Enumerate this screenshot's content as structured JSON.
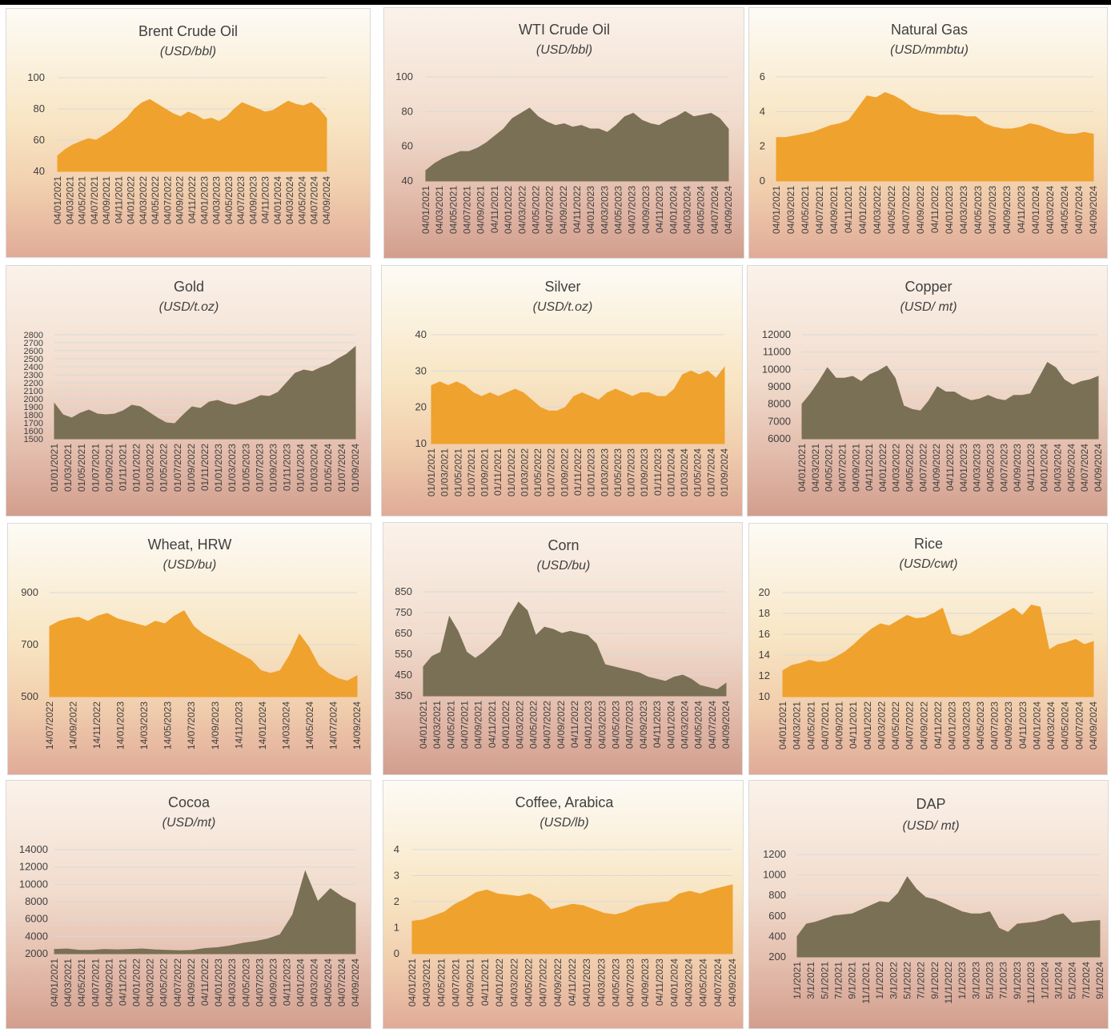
{
  "colors": {
    "orange": "#f0a22e",
    "olive": "#7a7055",
    "text": "#404040",
    "grid": "#d9d9d9"
  },
  "chart_data": [
    {
      "id": "brent",
      "type": "area",
      "title": "Brent Crude Oil",
      "unit": "(USD/bbl)",
      "color": "#f0a22e",
      "ylim": [
        40,
        100
      ],
      "yticks": [
        40,
        60,
        80,
        100
      ],
      "xticks": [
        "04/01/2021",
        "04/03/2021",
        "04/05/2021",
        "04/07/2021",
        "04/09/2021",
        "04/11/2021",
        "04/01/2022",
        "04/03/2022",
        "04/05/2022",
        "04/07/2022",
        "04/09/2022",
        "04/11/2022",
        "04/01/2023",
        "04/03/2023",
        "04/05/2023",
        "04/07/2023",
        "04/09/2023",
        "04/11/2023",
        "04/01/2024",
        "04/03/2024",
        "04/05/2024",
        "04/07/2024",
        "04/09/2024"
      ],
      "values": [
        50,
        54,
        57,
        59,
        61,
        60,
        63,
        66,
        70,
        74,
        80,
        84,
        86,
        83,
        80,
        77,
        75,
        78,
        76,
        73,
        74,
        72,
        75,
        80,
        84,
        82,
        80,
        78,
        79,
        82,
        85,
        83,
        82,
        84,
        80,
        74
      ]
    },
    {
      "id": "wti",
      "type": "area",
      "title": "WTI Crude Oil",
      "unit": "(USD/bbl)",
      "color": "#7a7055",
      "ylim": [
        40,
        100
      ],
      "yticks": [
        40,
        60,
        80,
        100
      ],
      "xticks": [
        "04/01/2021",
        "04/03/2021",
        "04/05/2021",
        "04/07/2021",
        "04/09/2021",
        "04/11/2021",
        "04/01/2022",
        "04/03/2022",
        "04/05/2022",
        "04/07/2022",
        "04/09/2022",
        "04/11/2022",
        "04/01/2023",
        "04/03/2023",
        "04/05/2023",
        "04/07/2023",
        "04/09/2023",
        "04/11/2023",
        "04/01/2024",
        "04/03/2024",
        "04/05/2024",
        "04/07/2024",
        "04/09/2024"
      ],
      "values": [
        46,
        50,
        53,
        55,
        57,
        57,
        59,
        62,
        66,
        70,
        76,
        79,
        82,
        77,
        74,
        72,
        73,
        71,
        72,
        70,
        70,
        68,
        72,
        77,
        79,
        75,
        73,
        72,
        75,
        77,
        80,
        77,
        78,
        79,
        76,
        70
      ]
    },
    {
      "id": "natgas",
      "type": "area",
      "title": "Natural Gas",
      "unit": "(USD/mmbtu)",
      "color": "#f0a22e",
      "ylim": [
        0,
        6
      ],
      "yticks": [
        0,
        2,
        4,
        6
      ],
      "xticks": [
        "04/01/2021",
        "04/03/2021",
        "04/05/2021",
        "04/07/2021",
        "04/09/2021",
        "04/11/2021",
        "04/01/2022",
        "04/03/2022",
        "04/05/2022",
        "04/07/2022",
        "04/09/2022",
        "04/11/2022",
        "04/01/2023",
        "04/03/2023",
        "04/05/2023",
        "04/07/2023",
        "04/09/2023",
        "04/11/2023",
        "04/01/2024",
        "04/03/2024",
        "04/05/2024",
        "04/07/2024",
        "04/09/2024"
      ],
      "values": [
        2.5,
        2.5,
        2.6,
        2.7,
        2.8,
        3.0,
        3.2,
        3.3,
        3.5,
        4.2,
        4.9,
        4.8,
        5.1,
        4.9,
        4.6,
        4.2,
        4.0,
        3.9,
        3.8,
        3.8,
        3.8,
        3.7,
        3.7,
        3.3,
        3.1,
        3.0,
        3.0,
        3.1,
        3.3,
        3.2,
        3.0,
        2.8,
        2.7,
        2.7,
        2.8,
        2.7
      ]
    },
    {
      "id": "gold",
      "type": "area",
      "title": "Gold",
      "unit": "(USD/t.oz)",
      "color": "#7a7055",
      "ylim": [
        1500,
        2800
      ],
      "yticks": [
        1500,
        1600,
        1700,
        1800,
        1900,
        2000,
        2100,
        2200,
        2300,
        2400,
        2500,
        2600,
        2700,
        2800
      ],
      "xticks": [
        "01/01/2021",
        "01/03/2021",
        "01/05/2021",
        "01/07/2021",
        "01/09/2021",
        "01/11/2021",
        "01/01/2022",
        "01/03/2022",
        "01/05/2022",
        "01/07/2022",
        "01/09/2022",
        "01/11/2022",
        "01/01/2023",
        "01/03/2023",
        "01/05/2023",
        "01/07/2023",
        "01/09/2023",
        "01/11/2023",
        "01/01/2024",
        "01/03/2024",
        "01/05/2024",
        "01/07/2024",
        "01/09/2024"
      ],
      "values": [
        1940,
        1800,
        1760,
        1820,
        1860,
        1810,
        1800,
        1810,
        1850,
        1920,
        1900,
        1830,
        1760,
        1700,
        1690,
        1800,
        1900,
        1880,
        1960,
        1980,
        1940,
        1920,
        1950,
        1990,
        2040,
        2030,
        2080,
        2200,
        2320,
        2360,
        2340,
        2390,
        2430,
        2500,
        2560,
        2650
      ]
    },
    {
      "id": "silver",
      "type": "area",
      "title": "Silver",
      "unit": "(USD/t.oz)",
      "color": "#f0a22e",
      "ylim": [
        10,
        40
      ],
      "yticks": [
        10,
        20,
        30,
        40
      ],
      "xticks": [
        "01/01/2021",
        "01/03/2021",
        "01/05/2021",
        "01/07/2021",
        "01/09/2021",
        "01/11/2021",
        "01/01/2022",
        "01/03/2022",
        "01/05/2022",
        "01/07/2022",
        "01/09/2022",
        "01/11/2022",
        "01/01/2023",
        "01/03/2023",
        "01/05/2023",
        "01/07/2023",
        "01/09/2023",
        "01/11/2023",
        "01/01/2024",
        "01/03/2024",
        "01/05/2024",
        "01/07/2024",
        "01/09/2024"
      ],
      "values": [
        26,
        27,
        26,
        27,
        26,
        24,
        23,
        24,
        23,
        24,
        25,
        24,
        22,
        20,
        19,
        19,
        20,
        23,
        24,
        23,
        22,
        24,
        25,
        24,
        23,
        24,
        24,
        23,
        23,
        25,
        29,
        30,
        29,
        30,
        28,
        31
      ]
    },
    {
      "id": "copper",
      "type": "area",
      "title": "Copper",
      "unit": "(USD/ mt)",
      "color": "#7a7055",
      "ylim": [
        6000,
        12000
      ],
      "yticks": [
        6000,
        7000,
        8000,
        9000,
        10000,
        11000,
        12000
      ],
      "xticks": [
        "04/01/2021",
        "04/03/2021",
        "04/05/2021",
        "04/07/2021",
        "04/09/2021",
        "04/11/2021",
        "04/01/2022",
        "04/03/2022",
        "04/05/2022",
        "04/07/2022",
        "04/09/2022",
        "04/11/2022",
        "04/01/2023",
        "04/03/2023",
        "04/05/2023",
        "04/07/2023",
        "04/09/2023",
        "04/11/2023",
        "04/01/2024",
        "04/03/2024",
        "04/05/2024",
        "04/07/2024",
        "04/09/2024"
      ],
      "values": [
        8000,
        8600,
        9300,
        10100,
        9500,
        9500,
        9600,
        9300,
        9700,
        9900,
        10200,
        9500,
        7900,
        7700,
        7600,
        8200,
        9000,
        8700,
        8700,
        8400,
        8200,
        8300,
        8500,
        8300,
        8200,
        8500,
        8500,
        8600,
        9500,
        10400,
        10100,
        9400,
        9100,
        9300,
        9400,
        9600
      ]
    },
    {
      "id": "wheat",
      "type": "area",
      "title": "Wheat, HRW",
      "unit": "(USD/bu)",
      "color": "#f0a22e",
      "ylim": [
        500,
        900
      ],
      "yticks": [
        500,
        700,
        900
      ],
      "xticks": [
        "14/07/2022",
        "14/09/2022",
        "14/11/2022",
        "14/01/2023",
        "14/03/2023",
        "14/05/2023",
        "14/07/2023",
        "14/09/2023",
        "14/11/2023",
        "14/01/2024",
        "14/03/2024",
        "14/05/2024",
        "14/07/2024",
        "14/09/2024"
      ],
      "values": [
        770,
        790,
        800,
        805,
        790,
        810,
        820,
        800,
        790,
        780,
        770,
        790,
        780,
        810,
        830,
        770,
        740,
        720,
        700,
        680,
        660,
        640,
        600,
        590,
        600,
        660,
        740,
        690,
        620,
        590,
        570,
        560,
        580
      ]
    },
    {
      "id": "corn",
      "type": "area",
      "title": "Corn",
      "unit": "(USD/bu)",
      "color": "#7a7055",
      "ylim": [
        350,
        850
      ],
      "yticks": [
        350,
        450,
        550,
        650,
        750,
        850
      ],
      "xticks": [
        "04/01/2021",
        "04/03/2021",
        "04/05/2021",
        "04/07/2021",
        "04/09/2021",
        "04/11/2021",
        "04/01/2022",
        "04/03/2022",
        "04/05/2022",
        "04/07/2022",
        "04/09/2022",
        "04/11/2022",
        "04/01/2023",
        "04/03/2023",
        "04/05/2023",
        "04/07/2023",
        "04/09/2023",
        "04/11/2023",
        "04/01/2024",
        "04/03/2024",
        "04/05/2024",
        "04/07/2024",
        "04/09/2024"
      ],
      "values": [
        490,
        540,
        560,
        730,
        660,
        560,
        530,
        560,
        600,
        640,
        730,
        800,
        760,
        640,
        680,
        670,
        650,
        660,
        650,
        640,
        600,
        500,
        490,
        480,
        470,
        460,
        440,
        430,
        420,
        440,
        450,
        430,
        400,
        390,
        380,
        410
      ]
    },
    {
      "id": "rice",
      "type": "area",
      "title": "Rice",
      "unit": "(USD/cwt)",
      "color": "#f0a22e",
      "ylim": [
        10,
        20
      ],
      "yticks": [
        10,
        12,
        14,
        16,
        18,
        20
      ],
      "xticks": [
        "04/01/2021",
        "04/03/2021",
        "04/05/2021",
        "04/07/2021",
        "04/09/2021",
        "04/11/2021",
        "04/01/2022",
        "04/03/2022",
        "04/05/2022",
        "04/07/2022",
        "04/09/2022",
        "04/11/2022",
        "04/01/2023",
        "04/03/2023",
        "04/05/2023",
        "04/07/2023",
        "04/09/2023",
        "04/11/2023",
        "04/01/2024",
        "04/03/2024",
        "04/05/2024",
        "04/07/2024",
        "04/09/2024"
      ],
      "values": [
        12.5,
        13.0,
        13.2,
        13.5,
        13.3,
        13.4,
        13.8,
        14.3,
        15.0,
        15.8,
        16.5,
        17.0,
        16.8,
        17.3,
        17.8,
        17.5,
        17.6,
        18.0,
        18.5,
        16.0,
        15.8,
        16.0,
        16.5,
        17.0,
        17.5,
        18.0,
        18.5,
        17.8,
        18.8,
        18.6,
        14.5,
        15.0,
        15.2,
        15.5,
        15.0,
        15.3
      ]
    },
    {
      "id": "cocoa",
      "type": "area",
      "title": "Cocoa",
      "unit": "(USD/mt)",
      "color": "#7a7055",
      "ylim": [
        2000,
        14000
      ],
      "yticks": [
        2000,
        4000,
        6000,
        8000,
        10000,
        12000,
        14000
      ],
      "xticks": [
        "04/01/2021",
        "04/03/2021",
        "04/05/2021",
        "04/07/2021",
        "04/09/2021",
        "04/11/2021",
        "04/01/2022",
        "04/03/2022",
        "04/05/2022",
        "04/07/2022",
        "04/09/2022",
        "04/11/2022",
        "04/01/2023",
        "04/03/2023",
        "04/05/2023",
        "04/07/2023",
        "04/09/2023",
        "04/11/2023",
        "04/01/2024",
        "04/03/2024",
        "04/05/2024",
        "04/07/2024",
        "04/09/2024"
      ],
      "values": [
        2500,
        2550,
        2400,
        2400,
        2500,
        2450,
        2500,
        2550,
        2450,
        2400,
        2350,
        2400,
        2600,
        2700,
        2900,
        3200,
        3400,
        3700,
        4200,
        6500,
        11500,
        8000,
        9500,
        8500,
        7800
      ]
    },
    {
      "id": "coffee",
      "type": "area",
      "title": "Coffee, Arabica",
      "unit": "(USD/lb)",
      "color": "#f0a22e",
      "ylim": [
        0,
        4
      ],
      "yticks": [
        0,
        1,
        2,
        3,
        4
      ],
      "xticks": [
        "04/01/2021",
        "04/03/2021",
        "04/05/2021",
        "04/07/2021",
        "04/09/2021",
        "04/11/2021",
        "04/01/2022",
        "04/03/2022",
        "04/05/2022",
        "04/07/2022",
        "04/09/2022",
        "04/11/2022",
        "04/01/2023",
        "04/03/2023",
        "04/05/2023",
        "04/07/2023",
        "04/09/2023",
        "04/11/2023",
        "04/01/2024",
        "04/03/2024",
        "04/05/2024",
        "04/07/2024",
        "04/09/2024"
      ],
      "values": [
        1.25,
        1.3,
        1.45,
        1.6,
        1.9,
        2.1,
        2.35,
        2.45,
        2.3,
        2.25,
        2.2,
        2.3,
        2.1,
        1.7,
        1.8,
        1.9,
        1.85,
        1.7,
        1.55,
        1.5,
        1.6,
        1.8,
        1.9,
        1.95,
        2.0,
        2.3,
        2.4,
        2.3,
        2.45,
        2.55,
        2.65
      ]
    },
    {
      "id": "dap",
      "type": "area",
      "title": "DAP",
      "unit": "(USD/ mt)",
      "color": "#7a7055",
      "ylim": [
        200,
        1200
      ],
      "yticks": [
        200,
        400,
        600,
        800,
        1000,
        1200
      ],
      "xticks": [
        "1/1/2021",
        "3/1/2021",
        "5/1/2021",
        "7/1/2021",
        "9/1/2021",
        "11/1/2021",
        "1/1/2022",
        "3/1/2022",
        "5/1/2022",
        "7/1/2022",
        "9/1/2022",
        "11/1/2022",
        "1/1/2023",
        "3/1/2023",
        "5/1/2023",
        "7/1/2023",
        "9/1/2023",
        "11/1/2023",
        "1/1/2024",
        "3/1/2024",
        "5/1/2024",
        "7/1/2024",
        "9/1/2024"
      ],
      "values": [
        400,
        520,
        540,
        570,
        600,
        610,
        620,
        660,
        700,
        740,
        730,
        820,
        980,
        860,
        780,
        760,
        720,
        680,
        640,
        620,
        620,
        640,
        480,
        440,
        520,
        530,
        540,
        560,
        600,
        620,
        530,
        540,
        550,
        555
      ]
    }
  ]
}
